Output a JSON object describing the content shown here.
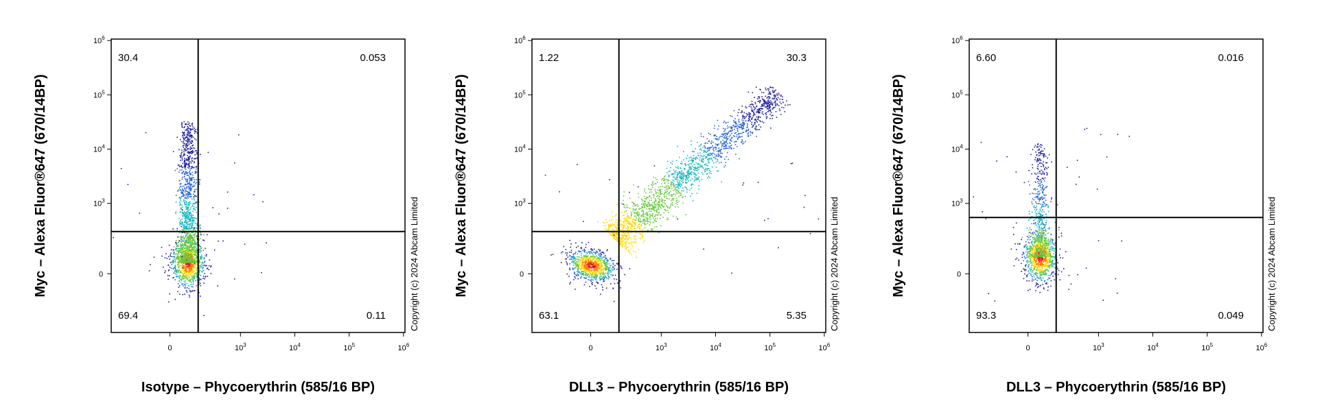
{
  "chart_data": [
    {
      "type": "scatter",
      "subtype": "flow-cytometry-density-dot-plot",
      "xlabel": "Isotype – Phycoerythrin (585/16 BP)",
      "ylabel": "Myc – Alexa Fluor®647 (670/14BP)",
      "x_scale": "biexponential",
      "y_scale": "biexponential",
      "x_ticks": [
        "0",
        "10^3",
        "10^4",
        "10^5",
        "10^6"
      ],
      "y_ticks": [
        "0",
        "10^3",
        "10^4",
        "10^5",
        "10^6"
      ],
      "gate": {
        "x": 400,
        "y": 600
      },
      "quadrants": {
        "upper_left": "30.4",
        "upper_right": "0.053",
        "lower_left": "69.4",
        "lower_right": "0.11"
      },
      "copyright": "Copyright (c) 2024 Abcam Limited",
      "populations": [
        {
          "center": [
            120,
            200
          ],
          "spread": "low-x, moderate-y",
          "density": "high"
        },
        {
          "center": [
            120,
            3000
          ],
          "spread": "vertical tail up to 1e5",
          "density": "medium"
        }
      ]
    },
    {
      "type": "scatter",
      "subtype": "flow-cytometry-density-dot-plot",
      "xlabel": "DLL3 – Phycoerythrin (585/16 BP)",
      "ylabel": "Myc – Alexa Fluor®647 (670/14BP)",
      "x_scale": "biexponential",
      "y_scale": "biexponential",
      "x_ticks": [
        "0",
        "10^3",
        "10^4",
        "10^5",
        "10^6"
      ],
      "y_ticks": [
        "0",
        "10^3",
        "10^4",
        "10^5",
        "10^6"
      ],
      "gate": {
        "x": 400,
        "y": 600
      },
      "quadrants": {
        "upper_left": "1.22",
        "upper_right": "30.3",
        "lower_left": "63.1",
        "lower_right": "5.35"
      },
      "copyright": "Copyright (c) 2024 Abcam Limited",
      "populations": [
        {
          "center": [
            150,
            200
          ],
          "spread": "round cluster",
          "density": "high"
        },
        {
          "center": [
            3000,
            3000
          ],
          "spread": "diagonal band up to 1e5 x 1e5",
          "density": "medium"
        }
      ]
    },
    {
      "type": "scatter",
      "subtype": "flow-cytometry-density-dot-plot",
      "xlabel": "DLL3 – Phycoerythrin (585/16 BP)",
      "ylabel": "Myc – Alexa Fluor®647 (670/14BP)",
      "x_scale": "biexponential",
      "y_scale": "biexponential",
      "x_ticks": [
        "0",
        "10^3",
        "10^4",
        "10^5",
        "10^6"
      ],
      "y_ticks": [
        "0",
        "10^3",
        "10^4",
        "10^5",
        "10^6"
      ],
      "gate": {
        "x": 400,
        "y": 800
      },
      "quadrants": {
        "upper_left": "6.60",
        "upper_right": "0.016",
        "lower_left": "93.3",
        "lower_right": "0.049"
      },
      "copyright": "Copyright (c) 2024 Abcam Limited",
      "populations": [
        {
          "center": [
            80,
            250
          ],
          "spread": "low-x, moderate-y",
          "density": "high"
        },
        {
          "center": [
            80,
            2500
          ],
          "spread": "vertical tail up to 4e4",
          "density": "low"
        }
      ]
    }
  ]
}
